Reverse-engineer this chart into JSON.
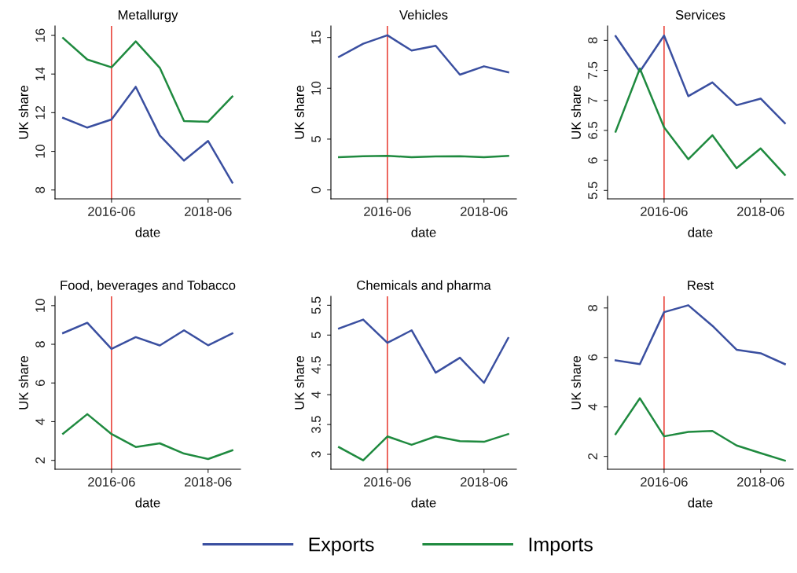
{
  "chart_data": [
    {
      "type": "line",
      "title": "Metallurgy",
      "xlabel": "date",
      "ylabel": "UK share",
      "x": [
        "2015-06",
        "2015-12",
        "2016-06",
        "2016-12",
        "2017-06",
        "2017-12",
        "2018-06",
        "2018-12"
      ],
      "series": [
        {
          "name": "Exports",
          "color": "#3a4fa0",
          "values": [
            11.73,
            11.23,
            11.65,
            13.34,
            10.82,
            9.52,
            10.54,
            8.38
          ]
        },
        {
          "name": "Imports",
          "color": "#1f8a3f",
          "values": [
            15.86,
            14.75,
            14.35,
            15.69,
            14.32,
            11.57,
            11.53,
            12.84
          ]
        }
      ],
      "xlim": [
        "2015-04",
        "2019-02"
      ],
      "xticks": [
        {
          "value": "2016-06",
          "label": "2016-06"
        },
        {
          "value": "2018-06",
          "label": "2018-06"
        }
      ],
      "ylim": [
        7.54,
        16.49
      ],
      "yticks": [
        8,
        10,
        12,
        14,
        16
      ],
      "ref_lines": [
        {
          "axis": "x",
          "value": "2016-06",
          "color": "#e8392f"
        }
      ],
      "legend": "bottom",
      "grid": false
    },
    {
      "type": "line",
      "title": "Vehicles",
      "xlabel": "date",
      "ylabel": "UK share",
      "x": [
        "2015-06",
        "2015-12",
        "2016-06",
        "2016-12",
        "2017-06",
        "2017-12",
        "2018-06",
        "2018-12"
      ],
      "series": [
        {
          "color": "#3a4fa0",
          "values": [
            13.09,
            14.38,
            15.21,
            13.71,
            14.18,
            11.34,
            12.16,
            11.57
          ]
        },
        {
          "color": "#1f8a3f",
          "values": [
            3.22,
            3.32,
            3.35,
            3.22,
            3.3,
            3.32,
            3.22,
            3.35
          ]
        }
      ],
      "xlim": [
        "2015-04",
        "2019-02"
      ],
      "xticks": [
        {
          "value": "2016-06",
          "label": "2016-06"
        },
        {
          "value": "2018-06",
          "label": "2018-06"
        }
      ],
      "ylim": [
        -0.88,
        16.13
      ],
      "yticks": [
        0,
        5,
        10,
        15
      ],
      "ref_lines": [
        {
          "axis": "x",
          "value": "2016-06",
          "color": "#e8392f"
        }
      ],
      "grid": false
    },
    {
      "type": "line",
      "title": "Services",
      "xlabel": "date",
      "ylabel": "UK share",
      "x": [
        "2015-06",
        "2015-12",
        "2016-06",
        "2016-12",
        "2017-06",
        "2017-12",
        "2018-06",
        "2018-12"
      ],
      "series": [
        {
          "color": "#3a4fa0",
          "values": [
            8.07,
            7.48,
            8.08,
            7.07,
            7.3,
            6.92,
            7.03,
            6.62
          ]
        },
        {
          "color": "#1f8a3f",
          "values": [
            6.48,
            7.53,
            6.55,
            6.02,
            6.42,
            5.87,
            6.2,
            5.76
          ]
        }
      ],
      "xlim": [
        "2015-04",
        "2019-02"
      ],
      "xticks": [
        {
          "value": "2016-06",
          "label": "2016-06"
        },
        {
          "value": "2018-06",
          "label": "2018-06"
        }
      ],
      "ylim": [
        5.36,
        8.24
      ],
      "yticks": [
        5.5,
        6,
        6.5,
        7,
        7.5,
        8
      ],
      "ref_lines": [
        {
          "axis": "x",
          "value": "2016-06",
          "color": "#e8392f"
        }
      ],
      "grid": false
    },
    {
      "type": "line",
      "title": "Food, beverages and Tobacco",
      "xlabel": "date",
      "ylabel": "UK share",
      "x": [
        "2015-06",
        "2015-12",
        "2016-06",
        "2016-12",
        "2017-06",
        "2017-12",
        "2018-06",
        "2018-12"
      ],
      "series": [
        {
          "color": "#3a4fa0",
          "values": [
            8.58,
            9.11,
            7.76,
            8.37,
            7.94,
            8.72,
            7.95,
            8.56
          ]
        },
        {
          "color": "#1f8a3f",
          "values": [
            3.38,
            4.39,
            3.36,
            2.69,
            2.88,
            2.35,
            2.07,
            2.52
          ]
        }
      ],
      "xlim": [
        "2015-04",
        "2019-02"
      ],
      "xticks": [
        {
          "value": "2016-06",
          "label": "2016-06"
        },
        {
          "value": "2018-06",
          "label": "2018-06"
        }
      ],
      "ylim": [
        1.54,
        10.48
      ],
      "yticks": [
        2,
        4,
        6,
        8,
        10
      ],
      "ref_lines": [
        {
          "axis": "x",
          "value": "2016-06",
          "color": "#e8392f"
        }
      ],
      "grid": false
    },
    {
      "type": "line",
      "title": "Chemicals and pharma",
      "xlabel": "date",
      "ylabel": "UK share",
      "x": [
        "2015-06",
        "2015-12",
        "2016-06",
        "2016-12",
        "2017-06",
        "2017-12",
        "2018-06",
        "2018-12"
      ],
      "series": [
        {
          "color": "#3a4fa0",
          "values": [
            5.11,
            5.26,
            4.87,
            5.08,
            4.37,
            4.62,
            4.2,
            4.95
          ]
        },
        {
          "color": "#1f8a3f",
          "values": [
            3.12,
            2.9,
            3.3,
            3.16,
            3.3,
            3.22,
            3.21,
            3.34
          ]
        }
      ],
      "xlim": [
        "2015-04",
        "2019-02"
      ],
      "xticks": [
        {
          "value": "2016-06",
          "label": "2016-06"
        },
        {
          "value": "2018-06",
          "label": "2018-06"
        }
      ],
      "ylim": [
        2.75,
        5.65
      ],
      "yticks": [
        3,
        3.5,
        4,
        4.5,
        5,
        5.5
      ],
      "ref_lines": [
        {
          "axis": "x",
          "value": "2016-06",
          "color": "#e8392f"
        }
      ],
      "grid": false
    },
    {
      "type": "line",
      "title": "Rest",
      "xlabel": "date",
      "ylabel": "UK share",
      "x": [
        "2015-06",
        "2015-12",
        "2016-06",
        "2016-12",
        "2017-06",
        "2017-12",
        "2018-06",
        "2018-12"
      ],
      "series": [
        {
          "color": "#3a4fa0",
          "values": [
            5.88,
            5.73,
            7.83,
            8.11,
            7.28,
            6.31,
            6.17,
            5.73
          ]
        },
        {
          "color": "#1f8a3f",
          "values": [
            2.9,
            4.35,
            2.81,
            2.99,
            3.03,
            2.44,
            2.13,
            1.83
          ]
        }
      ],
      "xlim": [
        "2015-04",
        "2019-02"
      ],
      "xticks": [
        {
          "value": "2016-06",
          "label": "2016-06"
        },
        {
          "value": "2018-06",
          "label": "2018-06"
        }
      ],
      "ylim": [
        1.48,
        8.47
      ],
      "yticks": [
        2,
        4,
        6,
        8
      ],
      "ref_lines": [
        {
          "axis": "x",
          "value": "2016-06",
          "color": "#e8392f"
        }
      ],
      "grid": false
    }
  ]
}
